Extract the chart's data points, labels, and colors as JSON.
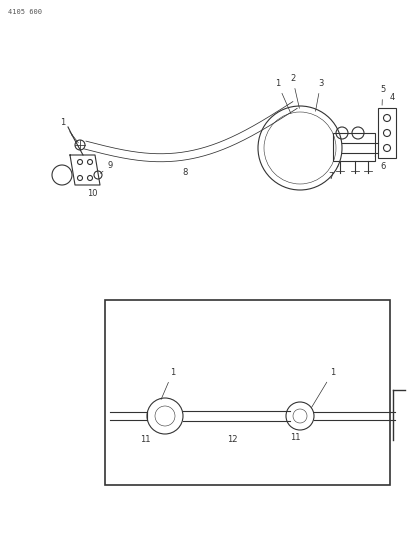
{
  "bg_color": "#ffffff",
  "line_color": "#333333",
  "page_ref": "4105 600",
  "figsize": [
    4.08,
    5.33
  ],
  "dpi": 100
}
